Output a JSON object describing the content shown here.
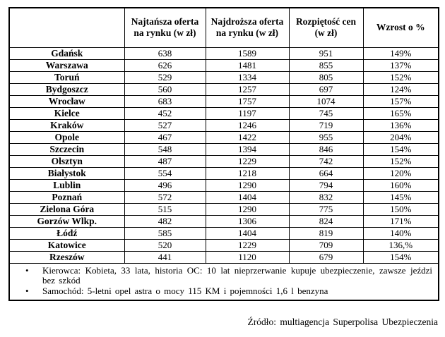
{
  "chart_data": {
    "type": "table",
    "title": "",
    "columns": [
      "",
      "Najtańsza oferta na rynku (w zł)",
      "Najdroższa oferta na rynku (w zł)",
      "Rozpiętość cen (w zł)",
      "Wzrost o %"
    ],
    "rows": [
      [
        "Gdańsk",
        "638",
        "1589",
        "951",
        "149%"
      ],
      [
        "Warszawa",
        "626",
        "1481",
        "855",
        "137%"
      ],
      [
        "Toruń",
        "529",
        "1334",
        "805",
        "152%"
      ],
      [
        "Bydgoszcz",
        "560",
        "1257",
        "697",
        "124%"
      ],
      [
        "Wrocław",
        "683",
        "1757",
        "1074",
        "157%"
      ],
      [
        "Kielce",
        "452",
        "1197",
        "745",
        "165%"
      ],
      [
        "Kraków",
        "527",
        "1246",
        "719",
        "136%"
      ],
      [
        "Opole",
        "467",
        "1422",
        "955",
        "204%"
      ],
      [
        "Szczecin",
        "548",
        "1394",
        "846",
        "154%"
      ],
      [
        "Olsztyn",
        "487",
        "1229",
        "742",
        "152%"
      ],
      [
        "Białystok",
        "554",
        "1218",
        "664",
        "120%"
      ],
      [
        "Lublin",
        "496",
        "1290",
        "794",
        "160%"
      ],
      [
        "Poznań",
        "572",
        "1404",
        "832",
        "145%"
      ],
      [
        "Zielona Góra",
        "515",
        "1290",
        "775",
        "150%"
      ],
      [
        "Gorzów Wlkp.",
        "482",
        "1306",
        "824",
        "171%"
      ],
      [
        "Łódź",
        "585",
        "1404",
        "819",
        "140%"
      ],
      [
        "Katowice",
        "520",
        "1229",
        "709",
        "136,%"
      ],
      [
        "Rzeszów",
        "441",
        "1120",
        "679",
        "154%"
      ]
    ],
    "notes": [
      "Kierowca: Kobieta, 33 lata, historia OC: 10 lat nieprzerwanie kupuje ubezpieczenie, zawsze jeździ bez szkód",
      "Samochód: 5-letni opel astra o mocy 115 KM i pojemności 1,6 l benzyna"
    ],
    "bullet_glyph": "•",
    "source": "Źródło: multiagencja Superpolisa Ubezpieczenia",
    "colors": {
      "border": "#000000",
      "text": "#000000",
      "background": "#ffffff"
    },
    "layout": {
      "grid": true,
      "header_bold": true,
      "city_column_bold": true
    }
  }
}
